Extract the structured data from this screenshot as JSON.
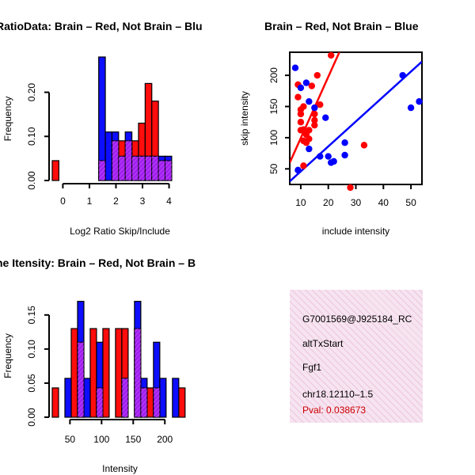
{
  "colors": {
    "red": "#ff0000",
    "blue": "#0000ff",
    "purple": "#a020f0",
    "axis": "#000000",
    "pval": "#cc0000"
  },
  "chart_data": [
    {
      "type": "bar",
      "title": "RatioData: Brain – Red, Not Brain – Blu",
      "xlabel": "Log2 Ratio Skip/Include",
      "ylabel": "Frequency",
      "xlim": [
        -0.4,
        4.7
      ],
      "ylim": [
        0,
        0.28
      ],
      "xticks": [
        0,
        1,
        2,
        3,
        4
      ],
      "yticks": [
        0.0,
        0.1,
        0.2
      ],
      "ytick_labels": [
        "0.00",
        "0.10",
        "0.20"
      ],
      "bin_width": 0.25,
      "series": [
        {
          "name": "Brain",
          "color": "red",
          "bins": [
            [
              -0.4,
              0.045
            ],
            [
              -0.15,
              0.0
            ],
            [
              0.1,
              0.0
            ],
            [
              0.35,
              0.0
            ],
            [
              0.6,
              0.0
            ],
            [
              0.85,
              0.0
            ],
            [
              1.1,
              0.0
            ],
            [
              1.35,
              0.045
            ],
            [
              1.6,
              0.0
            ],
            [
              1.85,
              0.09
            ],
            [
              2.1,
              0.09
            ],
            [
              2.35,
              0.09
            ],
            [
              2.6,
              0.09
            ],
            [
              2.85,
              0.13
            ],
            [
              3.1,
              0.22
            ],
            [
              3.35,
              0.18
            ],
            [
              3.6,
              0.045
            ],
            [
              3.85,
              0.045
            ]
          ]
        },
        {
          "name": "Not Brain",
          "color": "blue",
          "bins": [
            [
              1.35,
              0.28
            ],
            [
              1.6,
              0.11
            ],
            [
              1.85,
              0.11
            ],
            [
              2.1,
              0.055
            ],
            [
              2.35,
              0.11
            ],
            [
              2.6,
              0.055
            ],
            [
              2.85,
              0.055
            ],
            [
              3.1,
              0.055
            ],
            [
              3.35,
              0.055
            ],
            [
              3.6,
              0.055
            ],
            [
              3.85,
              0.055
            ]
          ]
        }
      ]
    },
    {
      "type": "scatter",
      "title": "Brain – Red, Not Brain – Blue",
      "xlabel": "include intensity",
      "ylabel": "skip intensity",
      "xlim": [
        6,
        54
      ],
      "ylim": [
        25,
        237
      ],
      "xticks": [
        10,
        20,
        30,
        40,
        50
      ],
      "yticks": [
        50,
        100,
        150,
        200
      ],
      "series": [
        {
          "name": "Brain",
          "color": "red",
          "points": [
            [
              9,
              185
            ],
            [
              9,
              165
            ],
            [
              10,
              145
            ],
            [
              10,
              138
            ],
            [
              10,
              125
            ],
            [
              10,
              112
            ],
            [
              11,
              150
            ],
            [
              11,
              113
            ],
            [
              11,
              95
            ],
            [
              11,
              55
            ],
            [
              12,
              105
            ],
            [
              12,
              92
            ],
            [
              13,
              98
            ],
            [
              13,
              112
            ],
            [
              14,
              183
            ],
            [
              15,
              120
            ],
            [
              15,
              128
            ],
            [
              15,
              138
            ],
            [
              16,
              200
            ],
            [
              17,
              153
            ],
            [
              21,
              232
            ],
            [
              28,
              20
            ],
            [
              33,
              88
            ]
          ],
          "fit": [
            [
              6,
              60
            ],
            [
              24,
              237
            ]
          ]
        },
        {
          "name": "Not Brain",
          "color": "blue",
          "points": [
            [
              8,
              212
            ],
            [
              9,
              48
            ],
            [
              10,
              180
            ],
            [
              12,
              188
            ],
            [
              13,
              158
            ],
            [
              13,
              82
            ],
            [
              15,
              148
            ],
            [
              17,
              70
            ],
            [
              19,
              132
            ],
            [
              20,
              70
            ],
            [
              21,
              60
            ],
            [
              22,
              62
            ],
            [
              26,
              72
            ],
            [
              26,
              92
            ],
            [
              47,
              200
            ],
            [
              50,
              148
            ],
            [
              53,
              158
            ]
          ],
          "fit": [
            [
              6,
              30
            ],
            [
              54,
              222
            ]
          ]
        }
      ]
    },
    {
      "type": "bar",
      "title": "ne Itensity: Brain – Red, Not Brain – B",
      "xlabel": "Intensity",
      "ylabel": "Frequency",
      "xlim": [
        22,
        236
      ],
      "ylim": [
        0,
        0.18
      ],
      "xticks": [
        50,
        100,
        150,
        200
      ],
      "yticks": [
        0.0,
        0.05,
        0.1,
        0.15
      ],
      "ytick_labels": [
        "0.00",
        "0.05",
        "0.10",
        "0.15"
      ],
      "bin_width": 10,
      "series": [
        {
          "name": "Brain",
          "color": "red",
          "bins": [
            [
              22,
              0.043
            ],
            [
              32,
              0.0
            ],
            [
              42,
              0.0
            ],
            [
              52,
              0.13
            ],
            [
              62,
              0.11
            ],
            [
              72,
              0.0
            ],
            [
              82,
              0.13
            ],
            [
              92,
              0.043
            ],
            [
              102,
              0.13
            ],
            [
              112,
              0.0
            ],
            [
              122,
              0.13
            ],
            [
              132,
              0.13
            ],
            [
              142,
              0.0
            ],
            [
              152,
              0.13
            ],
            [
              162,
              0.043
            ],
            [
              172,
              0.043
            ],
            [
              182,
              0.043
            ],
            [
              192,
              0.0
            ],
            [
              202,
              0.0
            ],
            [
              212,
              0.0
            ],
            [
              222,
              0.043
            ]
          ]
        },
        {
          "name": "Not Brain",
          "color": "blue",
          "bins": [
            [
              42,
              0.057
            ],
            [
              52,
              0.0
            ],
            [
              62,
              0.17
            ],
            [
              72,
              0.057
            ],
            [
              82,
              0.0
            ],
            [
              92,
              0.11
            ],
            [
              102,
              0.0
            ],
            [
              112,
              0.0
            ],
            [
              122,
              0.0
            ],
            [
              132,
              0.057
            ],
            [
              142,
              0.0
            ],
            [
              152,
              0.17
            ],
            [
              162,
              0.057
            ],
            [
              172,
              0.0
            ],
            [
              182,
              0.11
            ],
            [
              192,
              0.057
            ],
            [
              202,
              0.0
            ],
            [
              212,
              0.057
            ]
          ]
        }
      ]
    }
  ],
  "info": {
    "id": "G7001569@J925184_RC",
    "event": "altTxStart",
    "gene": "Fgf1",
    "location": "chr18.12110–1.5",
    "pval": "Pval: 0.038673"
  }
}
